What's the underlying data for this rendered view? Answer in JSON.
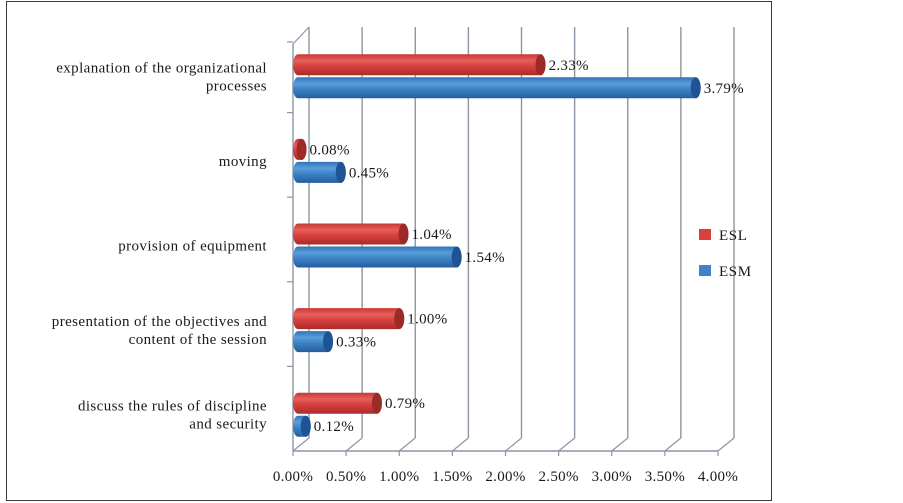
{
  "chart_data": {
    "type": "bar",
    "orientation": "horizontal",
    "style": "3d-cylinder",
    "title": "",
    "xlabel": "",
    "ylabel": "",
    "categories": [
      [
        "explanation of the organizational",
        "processes"
      ],
      [
        "moving"
      ],
      [
        "provision of equipment"
      ],
      [
        "presentation of the objectives and",
        "content of the session"
      ],
      [
        "discuss the rules of discipline",
        "and security"
      ]
    ],
    "series": [
      {
        "name": "ESL",
        "color": "#d9413f",
        "dark": "#9c2a28",
        "values": [
          2.33,
          0.08,
          1.04,
          1.0,
          0.79
        ],
        "labels": [
          "2.33%",
          "0.08%",
          "1.04%",
          "1.00%",
          "0.79%"
        ]
      },
      {
        "name": "ESM",
        "color": "#3d84c6",
        "dark": "#1f5494",
        "values": [
          3.79,
          0.45,
          1.54,
          0.33,
          0.12
        ],
        "labels": [
          "3.79%",
          "0.45%",
          "1.54%",
          "0.33%",
          "0.12%"
        ]
      }
    ],
    "xlim": [
      0,
      4.0
    ],
    "xticks": [
      0,
      0.5,
      1.0,
      1.5,
      2.0,
      2.5,
      3.0,
      3.5,
      4.0
    ],
    "xtick_labels": [
      "0.00%",
      "0.50%",
      "1.00%",
      "1.50%",
      "2.00%",
      "2.50%",
      "3.00%",
      "3.50%",
      "4.00%"
    ],
    "grid": true,
    "legend": {
      "position": "right",
      "entries": [
        "ESL",
        "ESM"
      ]
    }
  }
}
